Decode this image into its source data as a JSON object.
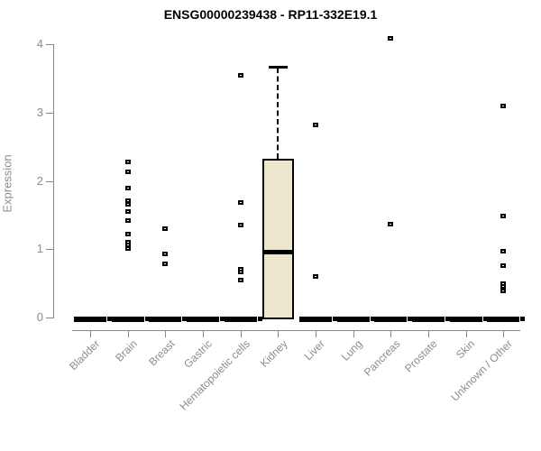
{
  "chart_data": {
    "type": "boxplot",
    "title": "ENSG00000239438 - RP11-332E19.1",
    "ylabel": "Expression",
    "xlabel": "",
    "ylim": [
      0,
      4
    ],
    "yticks": [
      0,
      1,
      2,
      3,
      4
    ],
    "grid": false,
    "legend": "none",
    "box_fill_color": "#ece7cd",
    "box_border_color": "#000000",
    "axis_color": "#888888",
    "tick_label_color": "#8c8c8c",
    "point_color": "#000000",
    "categories": [
      "Bladder",
      "Brain",
      "Breast",
      "Gastric",
      "Hematopoietic cells",
      "Kidney",
      "Liver",
      "Lung",
      "Pancreas",
      "Prostate",
      "Skin",
      "Unknown / Other"
    ],
    "boxes": [
      {
        "category": "Bladder",
        "whisker_low": 0,
        "q1": 0,
        "median": 0,
        "q3": 0,
        "whisker_high": 0,
        "points": []
      },
      {
        "category": "Brain",
        "whisker_low": 0,
        "q1": 0,
        "median": 0,
        "q3": 0,
        "whisker_high": 0,
        "points": [
          2.28,
          2.13,
          1.9,
          1.71,
          1.66,
          1.55,
          1.42,
          1.22,
          1.1,
          1.06,
          1.01
        ]
      },
      {
        "category": "Breast",
        "whisker_low": 0,
        "q1": 0,
        "median": 0,
        "q3": 0,
        "whisker_high": 0,
        "points": [
          1.3,
          0.93,
          0.79
        ]
      },
      {
        "category": "Gastric",
        "whisker_low": 0,
        "q1": 0,
        "median": 0,
        "q3": 0,
        "whisker_high": 0,
        "points": []
      },
      {
        "category": "Hematopoietic cells",
        "whisker_low": 0,
        "q1": 0,
        "median": 0,
        "q3": 0,
        "whisker_high": 0,
        "points": [
          3.55,
          1.68,
          1.35,
          0.71,
          0.67,
          0.55
        ]
      },
      {
        "category": "Kidney",
        "whisker_low": 0,
        "q1": 0,
        "median": 0.97,
        "q3": 2.32,
        "whisker_high": 3.66,
        "points": []
      },
      {
        "category": "Liver",
        "whisker_low": 0,
        "q1": 0,
        "median": 0,
        "q3": 0,
        "whisker_high": 0,
        "points": [
          2.82,
          0.6
        ]
      },
      {
        "category": "Lung",
        "whisker_low": 0,
        "q1": 0,
        "median": 0,
        "q3": 0,
        "whisker_high": 0,
        "points": []
      },
      {
        "category": "Pancreas",
        "whisker_low": 0,
        "q1": 0,
        "median": 0,
        "q3": 0,
        "whisker_high": 0,
        "points": [
          4.09,
          1.37
        ]
      },
      {
        "category": "Prostate",
        "whisker_low": 0,
        "q1": 0,
        "median": 0,
        "q3": 0,
        "whisker_high": 0,
        "points": []
      },
      {
        "category": "Skin",
        "whisker_low": 0,
        "q1": 0,
        "median": 0,
        "q3": 0,
        "whisker_high": 0,
        "points": []
      },
      {
        "category": "Unknown / Other",
        "whisker_low": 0,
        "q1": 0,
        "median": 0,
        "q3": 0,
        "whisker_high": 0,
        "points": [
          3.1,
          1.49,
          0.97,
          0.76,
          0.5,
          0.46,
          0.39
        ]
      }
    ]
  }
}
